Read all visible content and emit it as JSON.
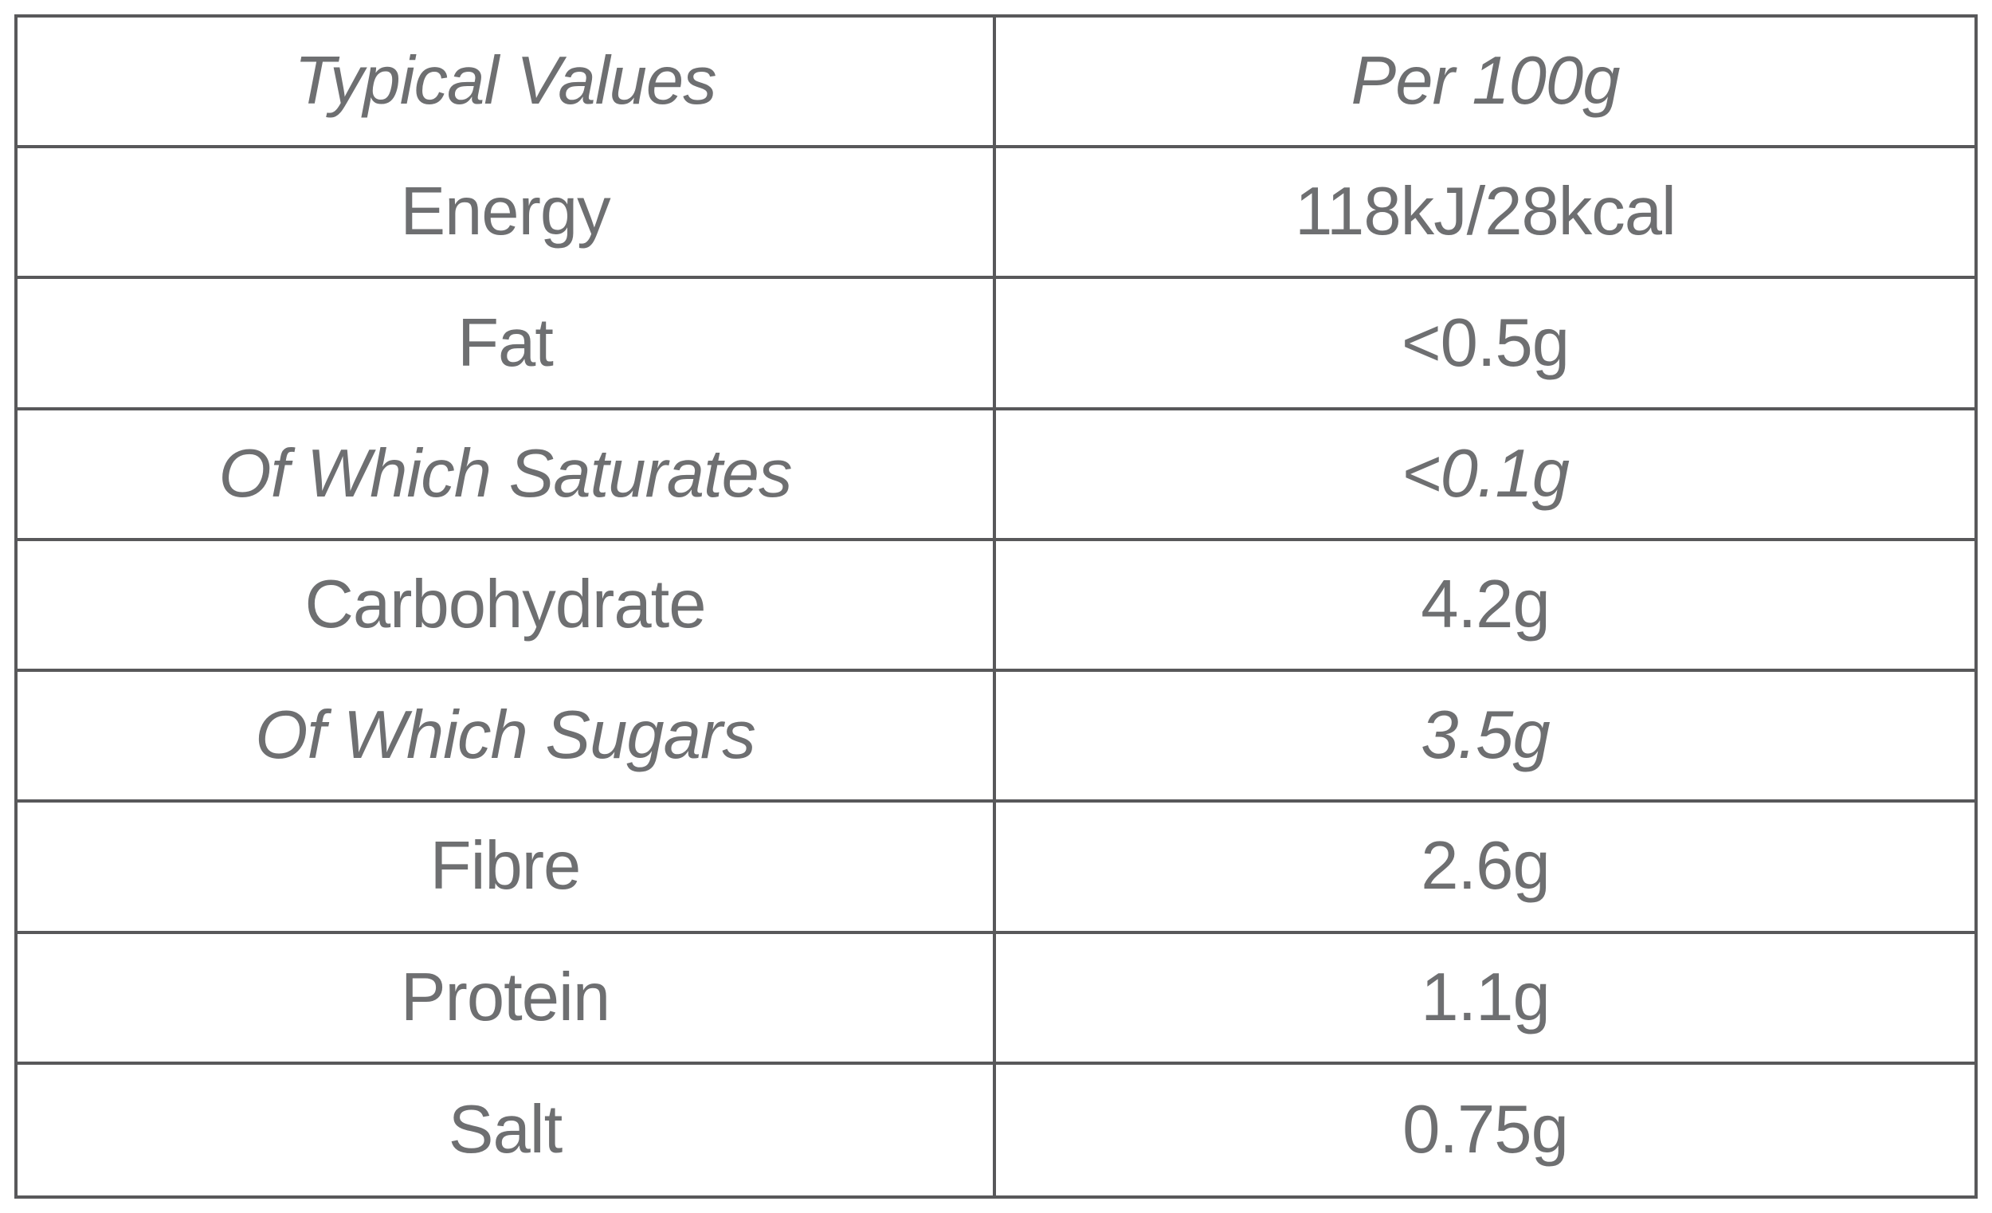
{
  "table": {
    "header": {
      "col1": "Typical Values",
      "col2": "Per 100g"
    },
    "rows": [
      {
        "label": "Energy",
        "value": "118kJ/28kcal"
      },
      {
        "label": "Fat",
        "value": "<0.5g"
      },
      {
        "label": "Of Which Saturates",
        "value": "<0.1g"
      },
      {
        "label": "Carbohydrate",
        "value": "4.2g"
      },
      {
        "label": "Of Which Sugars",
        "value": "3.5g"
      },
      {
        "label": "Fibre",
        "value": "2.6g"
      },
      {
        "label": "Protein",
        "value": "1.1g"
      },
      {
        "label": "Salt",
        "value": "0.75g"
      }
    ],
    "colors": {
      "border": "#58585a",
      "text": "#6e6f71",
      "background": "#ffffff"
    }
  }
}
